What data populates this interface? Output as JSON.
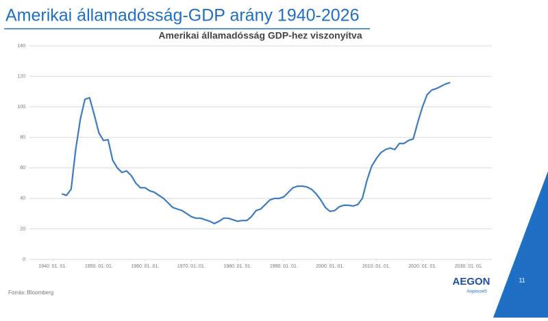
{
  "slide": {
    "title": "Amerikai államadósság-GDP arány 1940-2026",
    "source": "Forrás: Bloomberg",
    "page_number": "11",
    "logo": "AEGON",
    "logo_subtitle": "Alapkezelő"
  },
  "chart_data": {
    "type": "line",
    "title": "Amerikai államadósság GDP-hez viszonyítva",
    "series": [
      {
        "color": "#3b7bbf",
        "x": [
          1942,
          1943,
          1944,
          1945,
          1946,
          1947,
          1948,
          1949,
          1950,
          1951,
          1952,
          1953,
          1954,
          1955,
          1956,
          1957,
          1958,
          1959,
          1960,
          1961,
          1962,
          1963,
          1964,
          1965,
          1966,
          1967,
          1968,
          1969,
          1970,
          1971,
          1972,
          1973,
          1974,
          1975,
          1976,
          1977,
          1978,
          1979,
          1980,
          1981,
          1982,
          1983,
          1984,
          1985,
          1986,
          1987,
          1988,
          1989,
          1990,
          1991,
          1992,
          1993,
          1994,
          1995,
          1996,
          1997,
          1998,
          1999,
          2000,
          2001,
          2002,
          2003,
          2004,
          2005,
          2006,
          2007,
          2008,
          2009,
          2010,
          2011,
          2012,
          2013,
          2014,
          2015,
          2016,
          2017,
          2018,
          2019,
          2020,
          2021,
          2022,
          2023,
          2024,
          2025,
          2026
        ],
        "values": [
          43,
          42,
          46,
          72,
          92,
          105,
          106,
          95,
          83,
          78,
          78.5,
          65,
          60,
          57,
          58,
          55,
          50,
          47,
          47,
          45,
          44,
          42,
          40,
          37,
          34,
          33,
          32,
          30,
          28,
          27,
          27,
          26,
          25,
          23.5,
          25,
          27,
          27,
          26,
          25,
          25.5,
          25.5,
          28,
          32,
          33,
          36,
          39,
          40,
          40,
          41,
          44,
          47,
          48,
          48,
          47.5,
          46,
          43,
          39,
          34,
          31.5,
          32,
          34.5,
          35.5,
          35.5,
          35,
          36,
          40,
          52,
          61,
          66,
          70,
          72,
          73,
          72,
          76,
          76,
          78,
          79,
          90,
          100,
          108,
          111,
          112,
          113.5,
          115,
          116
        ]
      }
    ],
    "xlim": [
      1935,
      2035
    ],
    "xticks": [
      {
        "value": 1940,
        "label": "1940. 01. 01."
      },
      {
        "value": 1950,
        "label": "1950. 01. 01."
      },
      {
        "value": 1960,
        "label": "1960. 01. 01."
      },
      {
        "value": 1970,
        "label": "1970. 01. 01."
      },
      {
        "value": 1980,
        "label": "1980. 01. 01."
      },
      {
        "value": 1990,
        "label": "1990. 01. 01."
      },
      {
        "value": 2000,
        "label": "2000. 01. 01."
      },
      {
        "value": 2010,
        "label": "2010. 01. 01."
      },
      {
        "value": 2020,
        "label": "2020. 01. 01."
      },
      {
        "value": 2030,
        "label": "2030. 01. 01."
      }
    ],
    "ylim": [
      0,
      140
    ],
    "yticks": [
      0,
      20,
      40,
      60,
      80,
      100,
      120,
      140
    ],
    "grid": true
  }
}
